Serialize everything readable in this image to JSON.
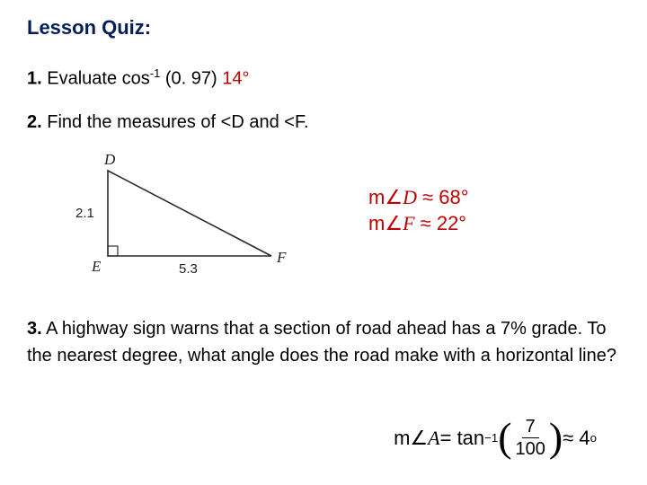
{
  "title": "Lesson Quiz:",
  "q1": {
    "num": "1.",
    "text_a": " Evaluate cos",
    "sup": "-1",
    "text_b": " (0. 97)   ",
    "answer": "14°"
  },
  "q2": {
    "num": "2.",
    "text": " Find the measures of <D and <F."
  },
  "triangle": {
    "D": "D",
    "E": "E",
    "F": "F",
    "DE": "2.1",
    "EF": "5.3",
    "stroke": "#2b2b2b",
    "strokeWidth": 1.6,
    "points": {
      "D": [
        70,
        15
      ],
      "E": [
        70,
        110
      ],
      "F": [
        252,
        110
      ]
    },
    "square": 11
  },
  "ans2": {
    "line1_a": "m",
    "angle": "∠",
    "D": "D",
    "approx": " ≈ ",
    "v1": "68°",
    "F": "F",
    "v2": "22°"
  },
  "q3": {
    "num": "3.",
    "text": " A highway sign warns that a section of road ahead has a 7% grade. To the nearest degree, what angle does the road make with a horizontal line?"
  },
  "ans3": {
    "lhs_a": "m",
    "angle": "∠",
    "A": "A",
    "eq": " = tan",
    "sup": "−1",
    "num": "7",
    "den": "100",
    "approx": " ≈ 4",
    "deg_small": "o"
  },
  "colors": {
    "title": "#041e5b",
    "answer": "#c00000",
    "text": "#000000"
  }
}
